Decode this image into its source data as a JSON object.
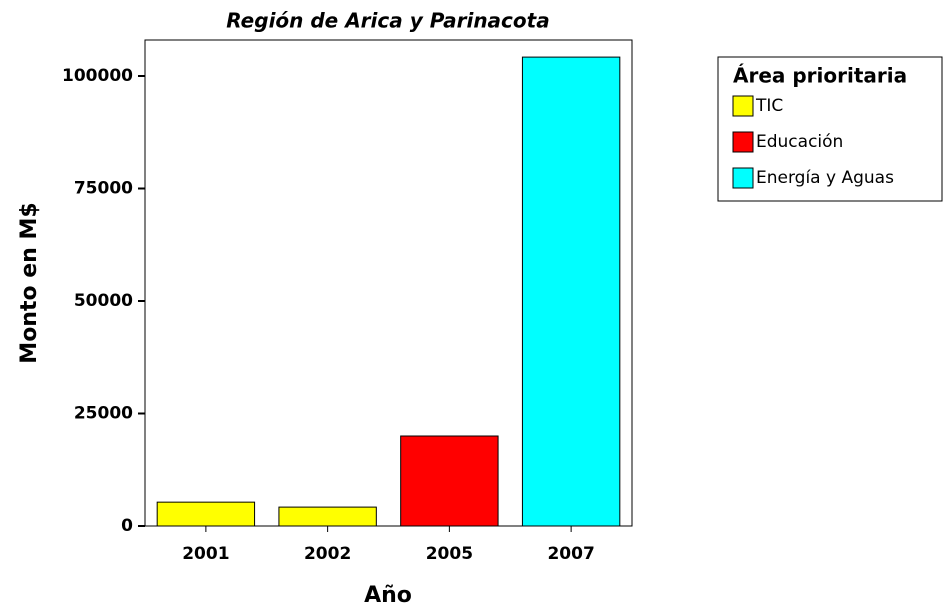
{
  "chart_data": {
    "type": "bar",
    "title": "Región de Arica y Parinacota",
    "x_label": "Año",
    "y_label": "Monto en M$",
    "categories": [
      "2001",
      "2002",
      "2005",
      "2007"
    ],
    "series": [
      {
        "name": "TIC",
        "color": "#ffff00",
        "values": [
          5300,
          4200,
          null,
          null
        ]
      },
      {
        "name": "Educación",
        "color": "#ff0000",
        "values": [
          null,
          null,
          20000,
          null
        ]
      },
      {
        "name": "Energía y Aguas",
        "color": "#00ffff",
        "values": [
          null,
          null,
          null,
          104200
        ]
      }
    ],
    "legend_title": "Área prioritaria",
    "ylim": [
      0,
      108000
    ],
    "yticks": [
      0,
      25000,
      50000,
      75000,
      100000
    ],
    "grid": false
  }
}
